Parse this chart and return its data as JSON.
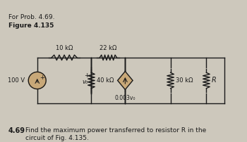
{
  "title_num": "4.69",
  "title_text": "Find the maximum power transferred to resistor R in the\ncircuit of Fig. 4.135.",
  "fig_label": "Figure 4.135",
  "fig_sublabel": "For Prob. 4.69.",
  "bg_color": "#cdc8bc",
  "text_color": "#1a1a1a",
  "wire_color": "#1a1a1a",
  "source_fill": "#c8a878",
  "resistor_labels": [
    "10 kΩ",
    "22 kΩ",
    "40 kΩ",
    "0.003v₀",
    "30 kΩ",
    "R"
  ],
  "voltage_source": "100 V",
  "controlled_source_label": "0.003v₀",
  "v0_label": "v₀"
}
